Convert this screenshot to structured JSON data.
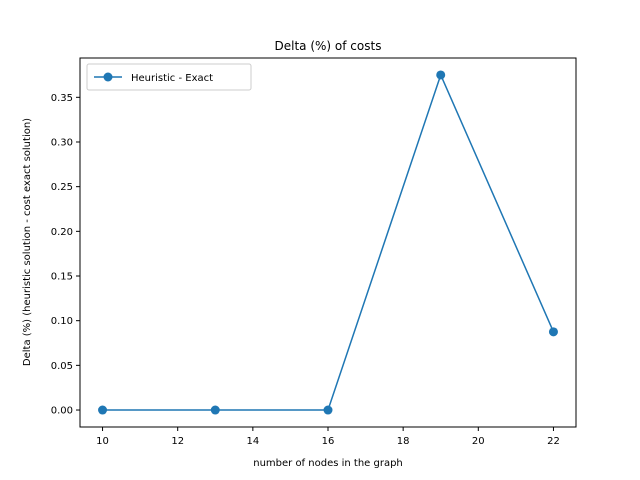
{
  "chart_data": {
    "type": "line",
    "title": "Delta (%) of costs",
    "xlabel": "number of nodes in the graph",
    "ylabel": "Delta (%) (heuristic solution - cost exact solution)",
    "xlim": [
      9.4,
      22.6
    ],
    "ylim": [
      -0.019,
      0.394
    ],
    "xticks": [
      10,
      12,
      14,
      16,
      18,
      20,
      22
    ],
    "yticks": [
      0.0,
      0.05,
      0.1,
      0.15,
      0.2,
      0.25,
      0.3,
      0.35
    ],
    "ytick_labels": [
      "0.00",
      "0.05",
      "0.10",
      "0.15",
      "0.20",
      "0.25",
      "0.30",
      "0.35"
    ],
    "grid": false,
    "legend_position": "top-left",
    "series": [
      {
        "name": "Heuristic - Exact",
        "color": "#1f77b4",
        "marker": "circle",
        "x": [
          10,
          13,
          16,
          19,
          22
        ],
        "y": [
          0.0,
          0.0,
          0.0,
          0.375,
          0.0875
        ]
      }
    ]
  }
}
